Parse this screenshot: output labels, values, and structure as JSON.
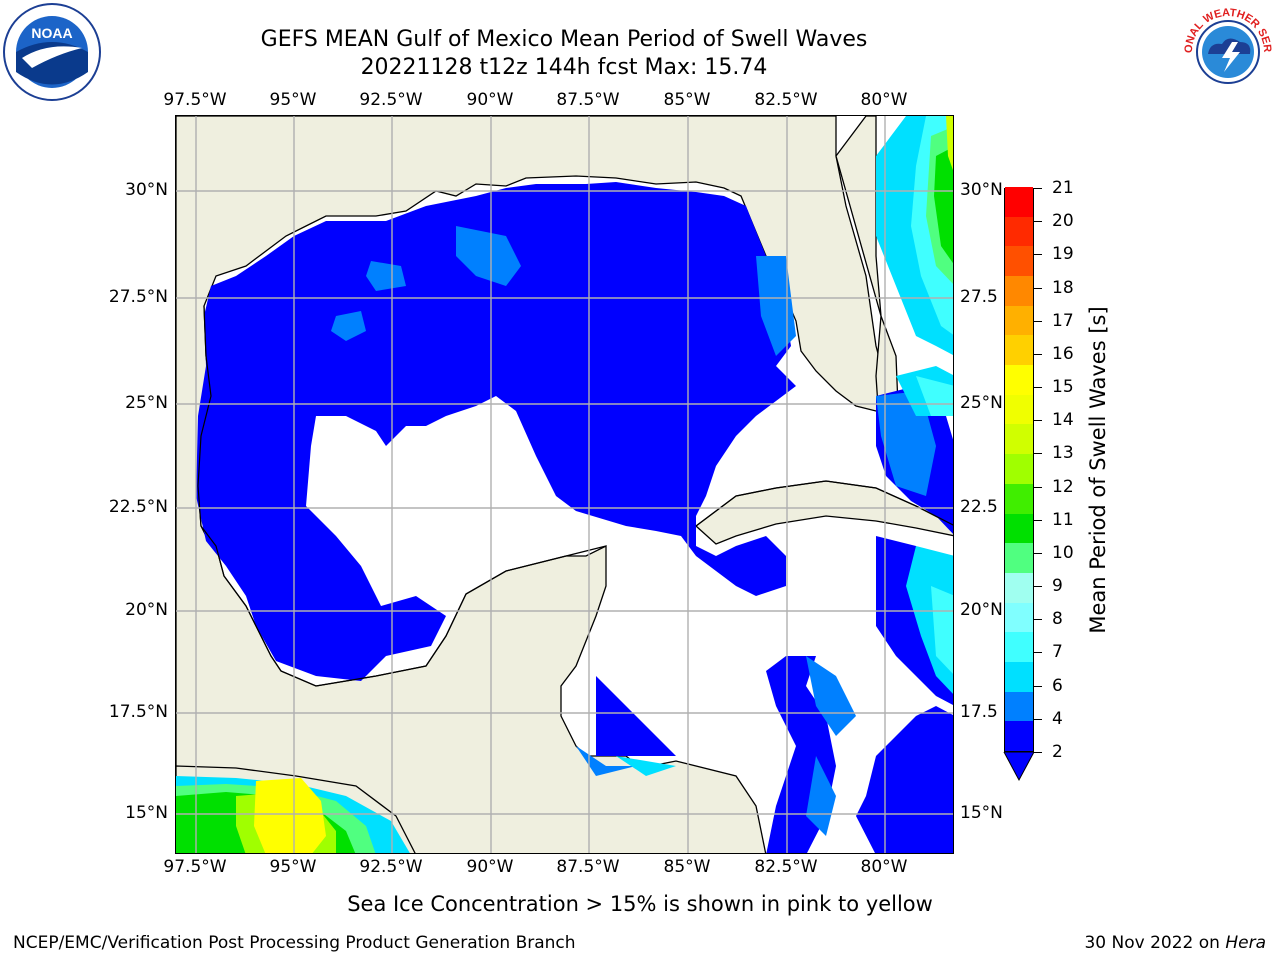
{
  "title": {
    "line1": "GEFS MEAN Gulf of Mexico Mean Period of Swell Waves",
    "line2": "20221128 t12z 144h fcst   Max: 15.74"
  },
  "logos": {
    "left": "noaa-logo",
    "left_text": "NOAA",
    "right": "nws-logo",
    "right_text": "NATIONAL WEATHER SERVICE"
  },
  "map": {
    "lon_ticks": [
      "97.5°W",
      "95°W",
      "92.5°W",
      "90°W",
      "87.5°W",
      "85°W",
      "82.5°W",
      "80°W"
    ],
    "lat_ticks_left": [
      "30°N",
      "27.5°N",
      "25°N",
      "22.5°N",
      "20°N",
      "17.5°N",
      "15°N"
    ],
    "lat_ticks_right": [
      "30°N",
      "27.5",
      "25°N",
      "22.5",
      "20°N",
      "17.5",
      "15°N"
    ],
    "lon_range": [
      -98,
      -78
    ],
    "lat_range": [
      14,
      31.6
    ],
    "land_color": "#efefdf",
    "water_color": "#ffffff",
    "grid": true
  },
  "colorbar": {
    "label": "Mean Period of Swell Waves [s]",
    "ticks": [
      "21",
      "20",
      "19",
      "18",
      "17",
      "16",
      "15",
      "14",
      "13",
      "12",
      "11",
      "10",
      "9",
      "8",
      "7",
      "6",
      "4",
      "2"
    ],
    "colors": [
      "#0000ff",
      "#0080ff",
      "#00e0ff",
      "#40ffff",
      "#80ffff",
      "#a0fff0",
      "#50ff80",
      "#00e000",
      "#40ee00",
      "#a0ff00",
      "#d0ff00",
      "#f0ff00",
      "#ffff00",
      "#ffd000",
      "#ffb000",
      "#ff8800",
      "#ff5000",
      "#ff2a00",
      "#ff0000"
    ]
  },
  "footer": {
    "note": "Sea Ice Concentration > 15% is shown in pink to yellow",
    "left": "NCEP/EMC/Verification Post Processing Product Generation Branch",
    "right_date": "30 Nov 2022 on ",
    "right_host": "Hera"
  }
}
